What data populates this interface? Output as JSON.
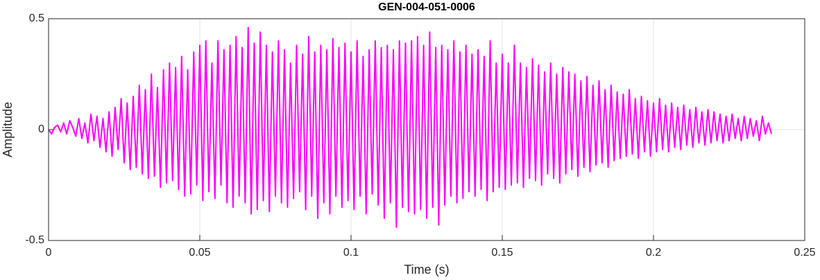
{
  "chart_data": {
    "type": "line",
    "title": "GEN-004-051-0006",
    "x_label": "Time (s)",
    "y_label": "Amplitude",
    "xlim": [
      0,
      0.25
    ],
    "ylim": [
      -0.5,
      0.5
    ],
    "xticks": [
      0,
      0.05,
      0.1,
      0.15,
      0.2,
      0.25
    ],
    "yticks": [
      -0.5,
      0,
      0.5
    ],
    "grid": true,
    "x": [
      0,
      0.001,
      0.002,
      0.003,
      0.004,
      0.005,
      0.006,
      0.007,
      0.008,
      0.009,
      0.01,
      0.011,
      0.012,
      0.013,
      0.014,
      0.015,
      0.016,
      0.017,
      0.018,
      0.019,
      0.02,
      0.021,
      0.022,
      0.023,
      0.024,
      0.025,
      0.026,
      0.027,
      0.028,
      0.029,
      0.03,
      0.031,
      0.032,
      0.033,
      0.034,
      0.035,
      0.036,
      0.037,
      0.038,
      0.039,
      0.04,
      0.041,
      0.042,
      0.043,
      0.044,
      0.045,
      0.046,
      0.047,
      0.048,
      0.049,
      0.05,
      0.051,
      0.052,
      0.053,
      0.054,
      0.055,
      0.056,
      0.057,
      0.058,
      0.059,
      0.06,
      0.061,
      0.062,
      0.063,
      0.064,
      0.065,
      0.066,
      0.067,
      0.068,
      0.069,
      0.07,
      0.071,
      0.072,
      0.073,
      0.074,
      0.075,
      0.076,
      0.077,
      0.078,
      0.079,
      0.08,
      0.081,
      0.082,
      0.083,
      0.084,
      0.085,
      0.086,
      0.087,
      0.088,
      0.089,
      0.09,
      0.091,
      0.092,
      0.093,
      0.094,
      0.095,
      0.096,
      0.097,
      0.098,
      0.099,
      0.1,
      0.101,
      0.102,
      0.103,
      0.104,
      0.105,
      0.106,
      0.107,
      0.108,
      0.109,
      0.11,
      0.111,
      0.112,
      0.113,
      0.114,
      0.115,
      0.116,
      0.117,
      0.118,
      0.119,
      0.12,
      0.121,
      0.122,
      0.123,
      0.124,
      0.125,
      0.126,
      0.127,
      0.128,
      0.129,
      0.13,
      0.131,
      0.132,
      0.133,
      0.134,
      0.135,
      0.136,
      0.137,
      0.138,
      0.139,
      0.14,
      0.141,
      0.142,
      0.143,
      0.144,
      0.145,
      0.146,
      0.147,
      0.148,
      0.149,
      0.15,
      0.151,
      0.152,
      0.153,
      0.154,
      0.155,
      0.156,
      0.157,
      0.158,
      0.159,
      0.16,
      0.161,
      0.162,
      0.163,
      0.164,
      0.165,
      0.166,
      0.167,
      0.168,
      0.169,
      0.17,
      0.171,
      0.172,
      0.173,
      0.174,
      0.175,
      0.176,
      0.177,
      0.178,
      0.179,
      0.18,
      0.181,
      0.182,
      0.183,
      0.184,
      0.185,
      0.186,
      0.187,
      0.188,
      0.189,
      0.19,
      0.191,
      0.192,
      0.193,
      0.194,
      0.195,
      0.196,
      0.197,
      0.198,
      0.199,
      0.2,
      0.201,
      0.202,
      0.203,
      0.204,
      0.205,
      0.206,
      0.207,
      0.208,
      0.209,
      0.21,
      0.211,
      0.212,
      0.213,
      0.214,
      0.215,
      0.216,
      0.217,
      0.218,
      0.219,
      0.22,
      0.221,
      0.222,
      0.223,
      0.224,
      0.225,
      0.226,
      0.227,
      0.228,
      0.229,
      0.23,
      0.231,
      0.232,
      0.233,
      0.234,
      0.235,
      0.236,
      0.237,
      0.238,
      0.239
    ],
    "series": [
      {
        "name": "Amplitude",
        "color": "#ff00ff",
        "values": [
          0,
          -0.02,
          0.01,
          0.02,
          -0.01,
          0.03,
          -0.02,
          0.04,
          0.01,
          -0.03,
          0.05,
          -0.04,
          0.03,
          -0.06,
          0.07,
          -0.05,
          0.06,
          -0.08,
          0.05,
          -0.1,
          0.08,
          -0.12,
          0.1,
          -0.09,
          0.14,
          -0.15,
          0.12,
          -0.18,
          0.15,
          -0.17,
          0.2,
          -0.2,
          0.18,
          -0.22,
          0.25,
          -0.21,
          0.19,
          -0.26,
          0.27,
          -0.24,
          0.3,
          -0.23,
          0.28,
          -0.27,
          0.33,
          -0.3,
          0.27,
          -0.29,
          0.35,
          -0.25,
          0.38,
          -0.32,
          0.4,
          -0.28,
          0.3,
          -0.31,
          0.4,
          -0.25,
          0.36,
          -0.33,
          0.38,
          -0.35,
          0.42,
          -0.3,
          0.37,
          -0.33,
          0.46,
          -0.38,
          0.39,
          -0.36,
          0.44,
          -0.32,
          0.38,
          -0.37,
          0.35,
          -0.3,
          0.4,
          -0.33,
          0.36,
          -0.35,
          0.3,
          -0.31,
          0.38,
          -0.28,
          0.34,
          -0.36,
          0.42,
          -0.3,
          0.35,
          -0.4,
          0.38,
          -0.33,
          0.36,
          -0.38,
          0.41,
          -0.3,
          0.37,
          -0.35,
          0.39,
          -0.32,
          0.35,
          -0.36,
          0.4,
          -0.3,
          0.33,
          -0.38,
          0.36,
          -0.29,
          0.4,
          -0.34,
          0.37,
          -0.4,
          0.38,
          -0.33,
          0.36,
          -0.44,
          0.4,
          -0.35,
          0.39,
          -0.37,
          0.4,
          -0.38,
          0.42,
          -0.36,
          0.38,
          -0.4,
          0.44,
          -0.35,
          0.37,
          -0.43,
          0.38,
          -0.34,
          0.36,
          -0.3,
          0.4,
          -0.33,
          0.35,
          -0.31,
          0.38,
          -0.28,
          0.34,
          -0.3,
          0.36,
          -0.27,
          0.33,
          -0.32,
          0.4,
          -0.28,
          0.3,
          -0.26,
          0.34,
          -0.27,
          0.3,
          -0.25,
          0.38,
          -0.24,
          0.3,
          -0.26,
          0.28,
          -0.22,
          0.32,
          -0.23,
          0.29,
          -0.25,
          0.26,
          -0.2,
          0.3,
          -0.22,
          0.25,
          -0.24,
          0.28,
          -0.2,
          0.26,
          -0.18,
          0.25,
          -0.21,
          0.22,
          -0.17,
          0.24,
          -0.19,
          0.2,
          -0.16,
          0.22,
          -0.15,
          0.18,
          -0.17,
          0.2,
          -0.14,
          0.17,
          -0.13,
          0.16,
          -0.12,
          0.18,
          -0.11,
          0.14,
          -0.13,
          0.15,
          -0.1,
          0.13,
          -0.12,
          0.12,
          -0.1,
          0.14,
          -0.09,
          0.11,
          -0.1,
          0.12,
          -0.08,
          0.1,
          -0.09,
          0.11,
          -0.07,
          0.09,
          -0.08,
          0.1,
          -0.06,
          0.08,
          -0.07,
          0.09,
          -0.06,
          0.08,
          -0.05,
          0.07,
          -0.06,
          0.06,
          -0.05,
          0.07,
          -0.04,
          0.05,
          -0.05,
          0.06,
          -0.04,
          0.05,
          -0.03,
          0.04,
          -0.05,
          0.06,
          -0.02,
          0.03,
          -0.02
        ]
      }
    ]
  }
}
